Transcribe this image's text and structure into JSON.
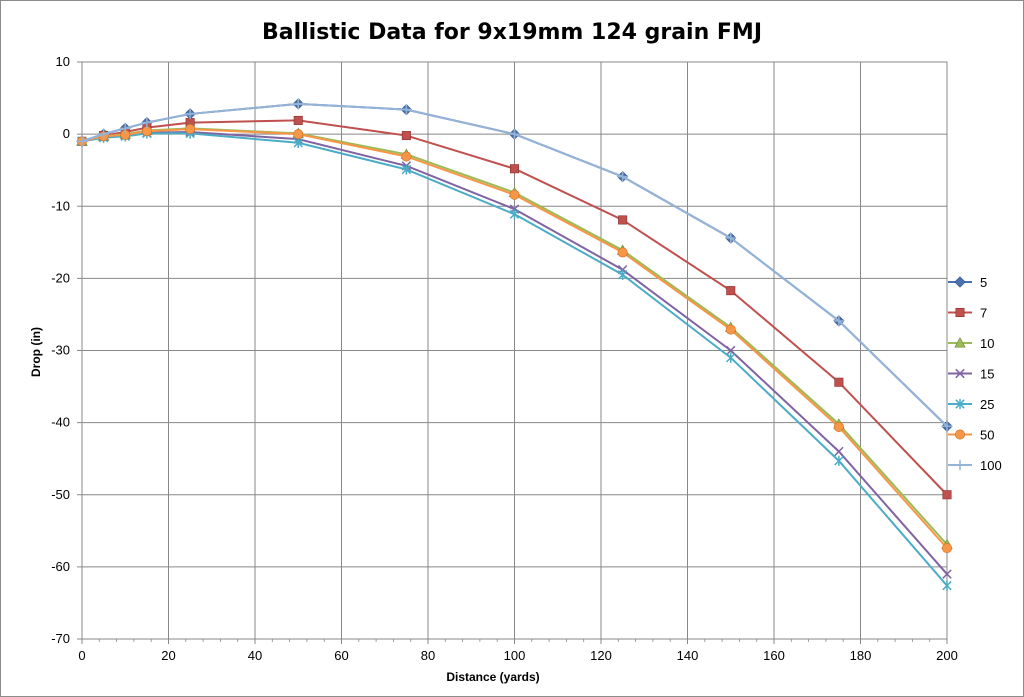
{
  "chart_data": {
    "type": "line",
    "title": "Ballistic Data for 9x19mm 124 grain FMJ",
    "xlabel": "Distance (yards)",
    "ylabel": "Drop (in)",
    "xlim": [
      0,
      200
    ],
    "ylim": [
      -70,
      10
    ],
    "xticks": [
      0,
      20,
      40,
      60,
      80,
      100,
      120,
      140,
      160,
      180,
      200
    ],
    "yticks": [
      10,
      0,
      -10,
      -20,
      -30,
      -40,
      -50,
      -60,
      -70
    ],
    "grid": true,
    "legend_position": "right",
    "x": [
      0,
      5,
      10,
      15,
      25,
      50,
      75,
      100,
      125,
      150,
      175,
      200
    ],
    "series": [
      {
        "name": "5",
        "color": "#4a72b0",
        "marker": "diamond",
        "values": [
          -1.0,
          0.0,
          0.8,
          1.6,
          2.8,
          4.2,
          3.4,
          0.0,
          -5.9,
          -14.4,
          -25.9,
          -40.5
        ]
      },
      {
        "name": "7",
        "color": "#c0504d",
        "marker": "square",
        "values": [
          -1.0,
          -0.2,
          0.3,
          0.9,
          1.6,
          1.9,
          -0.2,
          -4.8,
          -11.9,
          -21.7,
          -34.4,
          -50.0
        ]
      },
      {
        "name": "10",
        "color": "#9bbb59",
        "marker": "triangle",
        "values": [
          -1.0,
          -0.3,
          0.0,
          0.5,
          0.8,
          0.1,
          -2.8,
          -8.1,
          -16.1,
          -26.8,
          -40.2,
          -56.9
        ]
      },
      {
        "name": "15",
        "color": "#8064a2",
        "marker": "x",
        "values": [
          -1.0,
          -0.4,
          -0.2,
          0.2,
          0.3,
          -0.7,
          -4.4,
          -10.4,
          -18.8,
          -30.0,
          -44.0,
          -61.0
        ]
      },
      {
        "name": "25",
        "color": "#4bacc6",
        "marker": "star",
        "values": [
          -1.0,
          -0.5,
          -0.3,
          0.1,
          0.1,
          -1.2,
          -4.9,
          -11.1,
          -19.5,
          -31.0,
          -45.3,
          -62.6
        ]
      },
      {
        "name": "50",
        "color": "#f79646",
        "marker": "circle",
        "values": [
          -1.0,
          -0.3,
          -0.1,
          0.4,
          0.7,
          0.0,
          -3.1,
          -8.4,
          -16.4,
          -27.1,
          -40.6,
          -57.4
        ]
      },
      {
        "name": "100",
        "color": "#95b3d7",
        "marker": "plus",
        "values": [
          -1.0,
          0.0,
          0.8,
          1.6,
          2.8,
          4.2,
          3.4,
          0.0,
          -5.9,
          -14.4,
          -25.9,
          -40.5
        ]
      }
    ]
  }
}
